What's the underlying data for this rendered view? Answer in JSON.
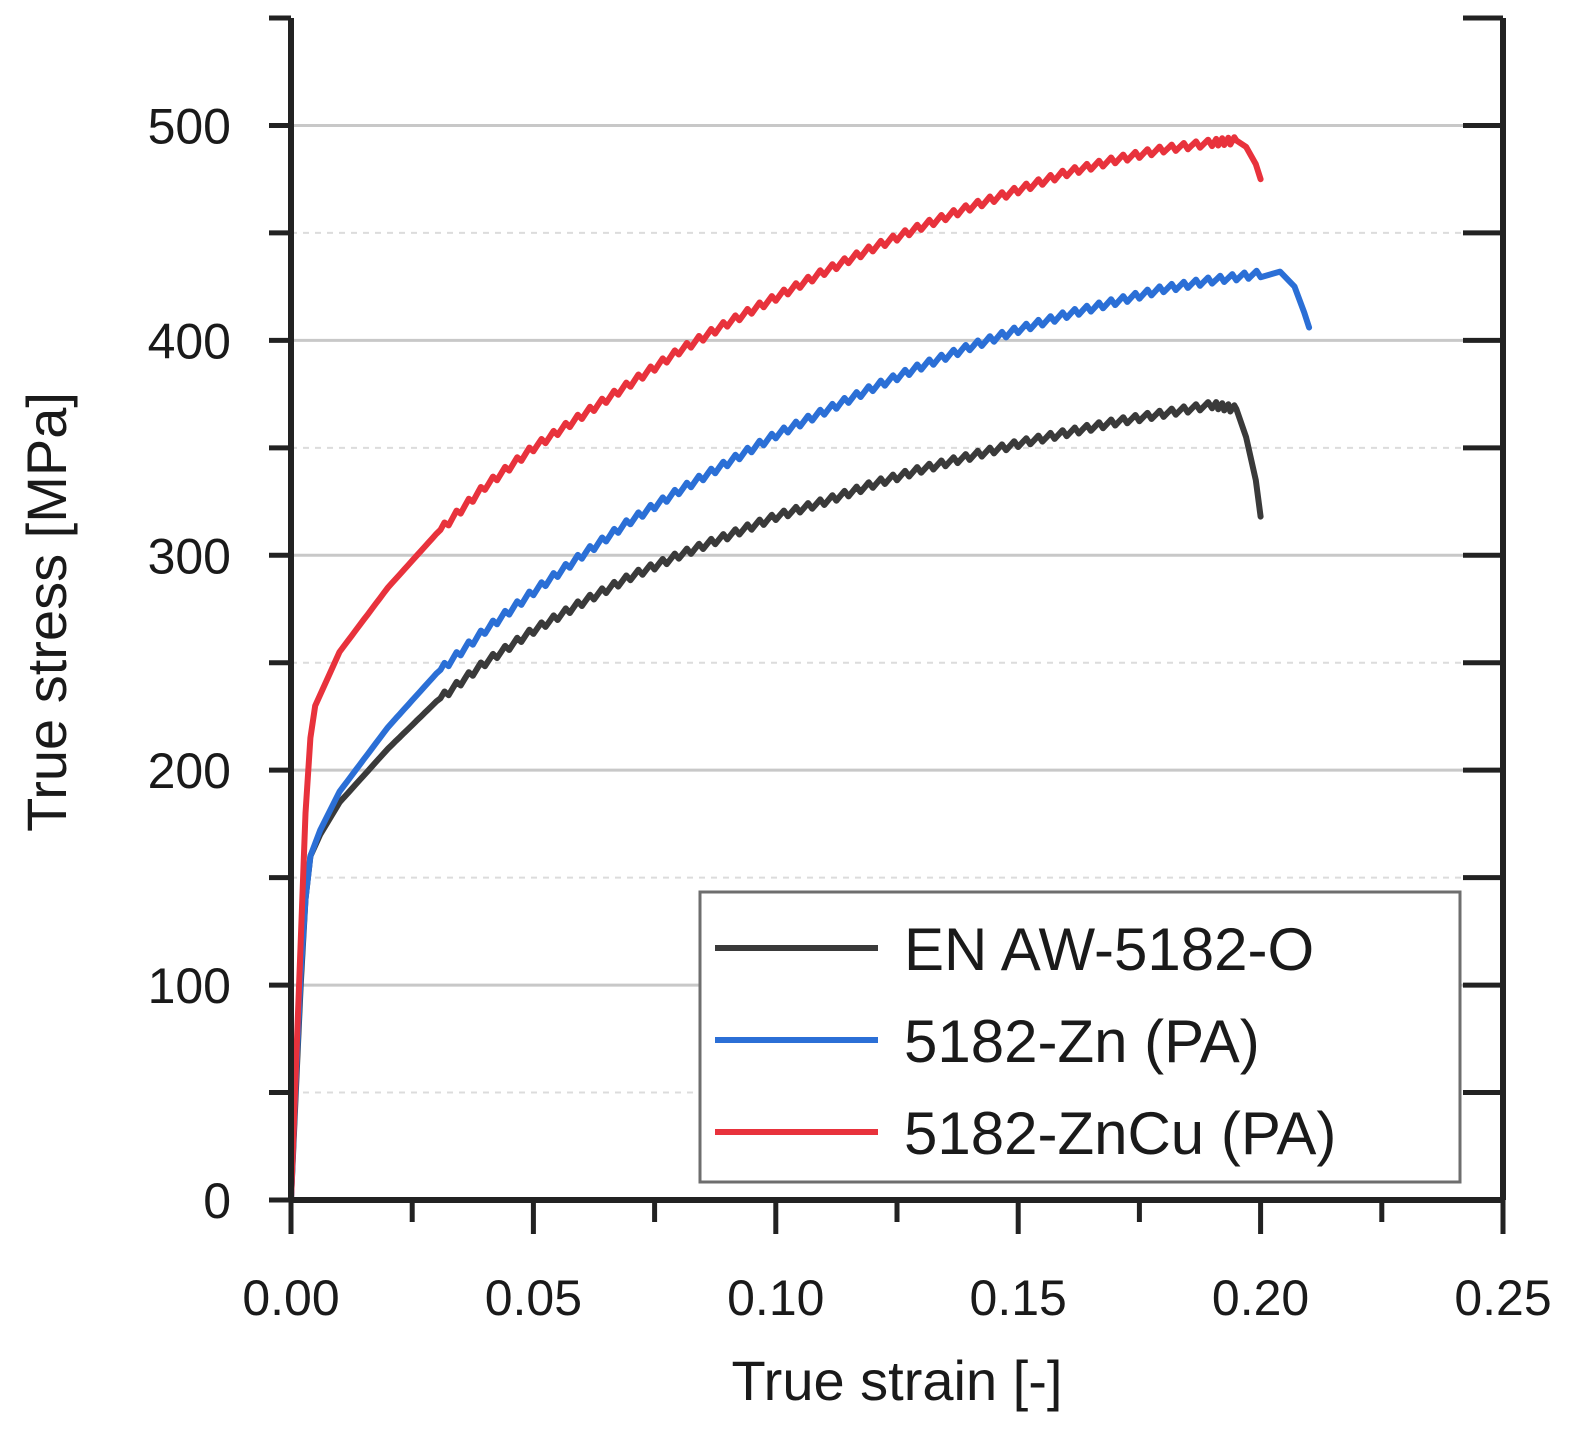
{
  "chart_data": {
    "type": "line",
    "title": "",
    "xlabel": "True strain [-]",
    "ylabel": "True stress [MPa]",
    "xlim": [
      0,
      0.25
    ],
    "ylim": [
      0,
      550
    ],
    "xticks": [
      "0.00",
      "0.05",
      "0.10",
      "0.15",
      "0.20",
      "0.25"
    ],
    "yticks": [
      "0",
      "100",
      "200",
      "300",
      "400",
      "500"
    ],
    "grid": "horizontal",
    "legend_position": "bottom-right",
    "series": [
      {
        "name": "EN AW-5182-O",
        "color": "#3a3a3a",
        "x": [
          0,
          0.001,
          0.002,
          0.003,
          0.004,
          0.006,
          0.01,
          0.02,
          0.03,
          0.04,
          0.05,
          0.06,
          0.07,
          0.08,
          0.09,
          0.1,
          0.11,
          0.12,
          0.13,
          0.14,
          0.15,
          0.16,
          0.17,
          0.18,
          0.19,
          0.195,
          0.197,
          0.199,
          0.2
        ],
        "y": [
          0,
          50,
          100,
          140,
          160,
          170,
          185,
          210,
          232,
          250,
          265,
          278,
          290,
          300,
          309,
          318,
          325,
          333,
          340,
          346,
          352,
          357,
          362,
          366,
          370,
          368,
          355,
          335,
          318
        ]
      },
      {
        "name": "5182-Zn (PA)",
        "color": "#2b6fd6",
        "x": [
          0,
          0.001,
          0.002,
          0.003,
          0.004,
          0.006,
          0.01,
          0.02,
          0.03,
          0.04,
          0.05,
          0.06,
          0.07,
          0.08,
          0.09,
          0.1,
          0.11,
          0.12,
          0.13,
          0.14,
          0.15,
          0.16,
          0.17,
          0.18,
          0.19,
          0.2,
          0.204,
          0.207,
          0.209,
          0.21
        ],
        "y": [
          0,
          55,
          105,
          140,
          160,
          172,
          190,
          220,
          245,
          265,
          283,
          300,
          316,
          330,
          343,
          356,
          367,
          378,
          388,
          397,
          405,
          412,
          418,
          424,
          428,
          431,
          432,
          425,
          413,
          406
        ]
      },
      {
        "name": "5182-ZnCu (PA)",
        "color": "#e8323c",
        "x": [
          0,
          0.001,
          0.002,
          0.003,
          0.004,
          0.005,
          0.008,
          0.01,
          0.02,
          0.03,
          0.04,
          0.05,
          0.06,
          0.07,
          0.08,
          0.09,
          0.1,
          0.11,
          0.12,
          0.13,
          0.14,
          0.15,
          0.16,
          0.17,
          0.18,
          0.19,
          0.195,
          0.197,
          0.199,
          0.2
        ],
        "y": [
          0,
          60,
          120,
          180,
          215,
          230,
          245,
          255,
          285,
          310,
          332,
          350,
          365,
          380,
          395,
          408,
          420,
          432,
          443,
          453,
          462,
          470,
          478,
          484,
          489,
          492,
          493,
          490,
          482,
          475
        ]
      }
    ]
  }
}
